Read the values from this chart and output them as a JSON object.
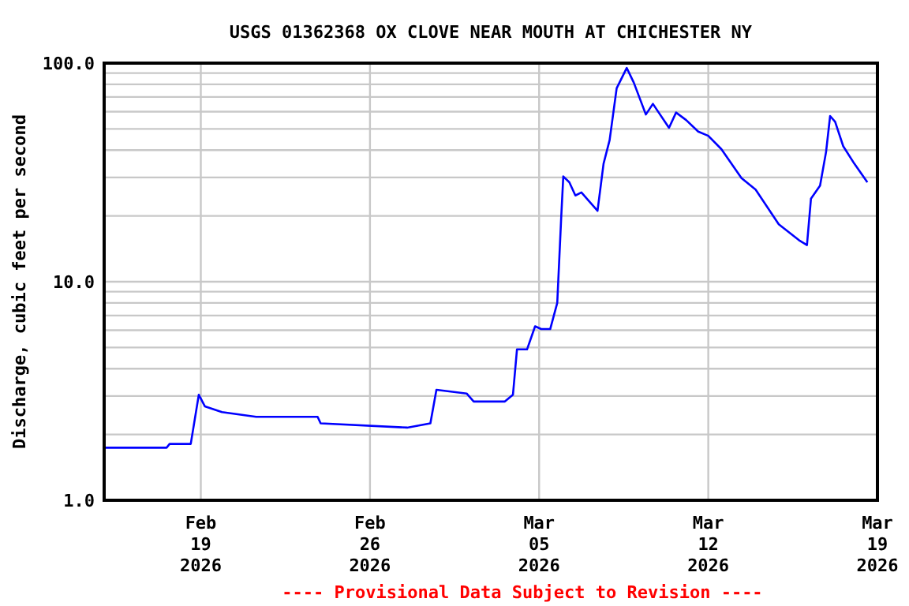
{
  "chart_data": {
    "type": "line",
    "title": "USGS 01362368 OX CLOVE NEAR MOUTH AT CHICHESTER NY",
    "ylabel": "Discharge, cubic feet per second",
    "annotations": [
      "---- Provisional Data Subject to Revision ----"
    ],
    "x": [
      "2026-02-15T00:00",
      "2026-02-17T14:00",
      "2026-02-17T17:00",
      "2026-02-18T14:00",
      "2026-02-18T22:00",
      "2026-02-19T04:00",
      "2026-02-19T21:00",
      "2026-02-21T07:00",
      "2026-02-23T20:00",
      "2026-02-23T23:00",
      "2026-02-27T13:00",
      "2026-02-28T12:00",
      "2026-02-28T18:00",
      "2026-03-02T00:00",
      "2026-03-02T07:00",
      "2026-03-03T14:00",
      "2026-03-03T22:00",
      "2026-03-04T02:00",
      "2026-03-04T12:00",
      "2026-03-04T20:00",
      "2026-03-05T02:00",
      "2026-03-05T11:00",
      "2026-03-05T18:00",
      "2026-03-05T22:00",
      "2026-03-06T00:00",
      "2026-03-06T06:00",
      "2026-03-06T12:00",
      "2026-03-06T18:00",
      "2026-03-07T10:00",
      "2026-03-07T16:00",
      "2026-03-07T22:00",
      "2026-03-08T05:00",
      "2026-03-08T15:00",
      "2026-03-08T22:00",
      "2026-03-09T10:00",
      "2026-03-09T17:00",
      "2026-03-10T09:00",
      "2026-03-10T16:00",
      "2026-03-11T02:00",
      "2026-03-11T14:00",
      "2026-03-12T00:00",
      "2026-03-12T13:00",
      "2026-03-13T09:00",
      "2026-03-13T23:00",
      "2026-03-14T22:00",
      "2026-03-15T18:00",
      "2026-03-16T02:00",
      "2026-03-16T06:00",
      "2026-03-16T15:00",
      "2026-03-16T21:00",
      "2026-03-17T01:00",
      "2026-03-17T06:00",
      "2026-03-17T14:00",
      "2026-03-18T01:00",
      "2026-03-18T14:00"
    ],
    "series": [
      {
        "color": "#0000ff",
        "values": [
          1.74,
          1.74,
          1.81,
          1.81,
          3.04,
          2.69,
          2.53,
          2.41,
          2.41,
          2.25,
          2.15,
          2.25,
          3.2,
          3.08,
          2.83,
          2.83,
          3.04,
          4.9,
          4.9,
          6.25,
          6.07,
          6.07,
          8.0,
          20,
          30.3,
          28.5,
          24.8,
          25.6,
          21.1,
          34.7,
          44.4,
          76.7,
          95,
          81.5,
          58.2,
          65.1,
          50.6,
          59.4,
          54.9,
          48.6,
          46.5,
          40.4,
          29.8,
          26.4,
          18.3,
          15.5,
          14.7,
          24.0,
          27.5,
          39.3,
          57.3,
          53.9,
          41.7,
          34.7,
          28.5
        ]
      }
    ],
    "xlim": [
      "2026-02-15",
      "2026-03-19"
    ],
    "xticks": [
      {
        "value": "2026-02-19",
        "label": "Feb\n19\n2026"
      },
      {
        "value": "2026-02-26",
        "label": "Feb\n26\n2026"
      },
      {
        "value": "2026-03-05",
        "label": "Mar\n05\n2026"
      },
      {
        "value": "2026-03-12",
        "label": "Mar\n12\n2026"
      },
      {
        "value": "2026-03-19",
        "label": "Mar\n19\n2026"
      }
    ],
    "ylim": [
      1,
      100
    ],
    "log": true,
    "yticks": [
      {
        "value": 1,
        "label": "1.0"
      },
      {
        "value": 2,
        "label": null
      },
      {
        "value": 3,
        "label": null
      },
      {
        "value": 4,
        "label": null
      },
      {
        "value": 5,
        "label": null
      },
      {
        "value": 6,
        "label": null
      },
      {
        "value": 7,
        "label": null
      },
      {
        "value": 8,
        "label": null
      },
      {
        "value": 9,
        "label": null
      },
      {
        "value": 10,
        "label": "10.0"
      },
      {
        "value": 20,
        "label": null
      },
      {
        "value": 30,
        "label": null
      },
      {
        "value": 40,
        "label": null
      },
      {
        "value": 50,
        "label": null
      },
      {
        "value": 60,
        "label": null
      },
      {
        "value": 70,
        "label": null
      },
      {
        "value": 80,
        "label": null
      },
      {
        "value": 90,
        "label": null
      },
      {
        "value": 100,
        "label": "100.0"
      }
    ],
    "grid": true,
    "line_style": "solid"
  }
}
